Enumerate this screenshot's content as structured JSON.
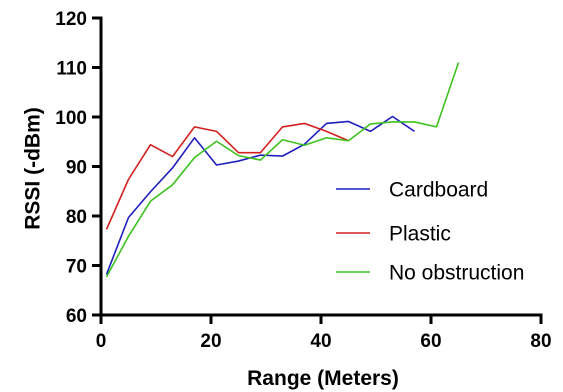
{
  "chart_data": {
    "type": "line",
    "xlabel": "Range (Meters)",
    "ylabel": "RSSI (-dBm)",
    "xlim": [
      0,
      80
    ],
    "ylim": [
      60,
      120
    ],
    "xticks": [
      0,
      20,
      40,
      60,
      80
    ],
    "yticks": [
      60,
      70,
      80,
      90,
      100,
      110,
      120
    ],
    "grid": false,
    "legend_position": "center-right",
    "series": [
      {
        "name": "Cardboard",
        "color": "#1f1fbf",
        "x": [
          1,
          5,
          9,
          13,
          17,
          21,
          25,
          29,
          33,
          37,
          41,
          45,
          49,
          53,
          57
        ],
        "y": [
          68.2,
          79.7,
          84.9,
          89.7,
          95.8,
          90.3,
          91.1,
          92.3,
          92.1,
          94.5,
          98.7,
          99.1,
          97.1,
          100.1,
          97.1
        ]
      },
      {
        "name": "Plastic",
        "color": "#d42020",
        "x": [
          1,
          5,
          9,
          13,
          17,
          21,
          25,
          29,
          33,
          37,
          41,
          45
        ],
        "y": [
          77.3,
          87.4,
          94.4,
          92.0,
          98.0,
          97.1,
          92.8,
          92.8,
          98.0,
          98.7,
          97.1,
          95.2
        ]
      },
      {
        "name": "No obstruction",
        "color": "#3ec21f",
        "x": [
          1,
          5,
          9,
          13,
          17,
          21,
          25,
          29,
          33,
          37,
          41,
          45,
          49,
          53,
          57,
          61,
          65
        ],
        "y": [
          67.7,
          75.9,
          83.0,
          86.3,
          91.8,
          95.1,
          92.2,
          91.3,
          95.4,
          94.3,
          95.8,
          95.2,
          98.6,
          99.0,
          99.0,
          98.0,
          111.0
        ]
      }
    ]
  }
}
